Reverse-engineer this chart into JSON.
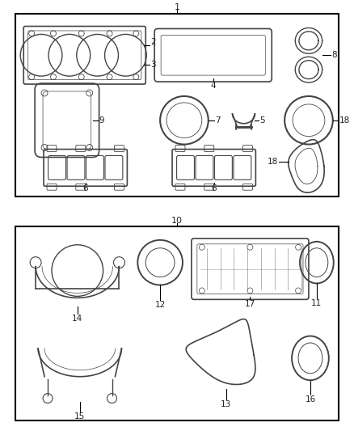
{
  "fig_width": 4.38,
  "fig_height": 5.33,
  "dpi": 100,
  "bg_color": "#ffffff",
  "label_color": "#222222",
  "line_color": "#444444"
}
